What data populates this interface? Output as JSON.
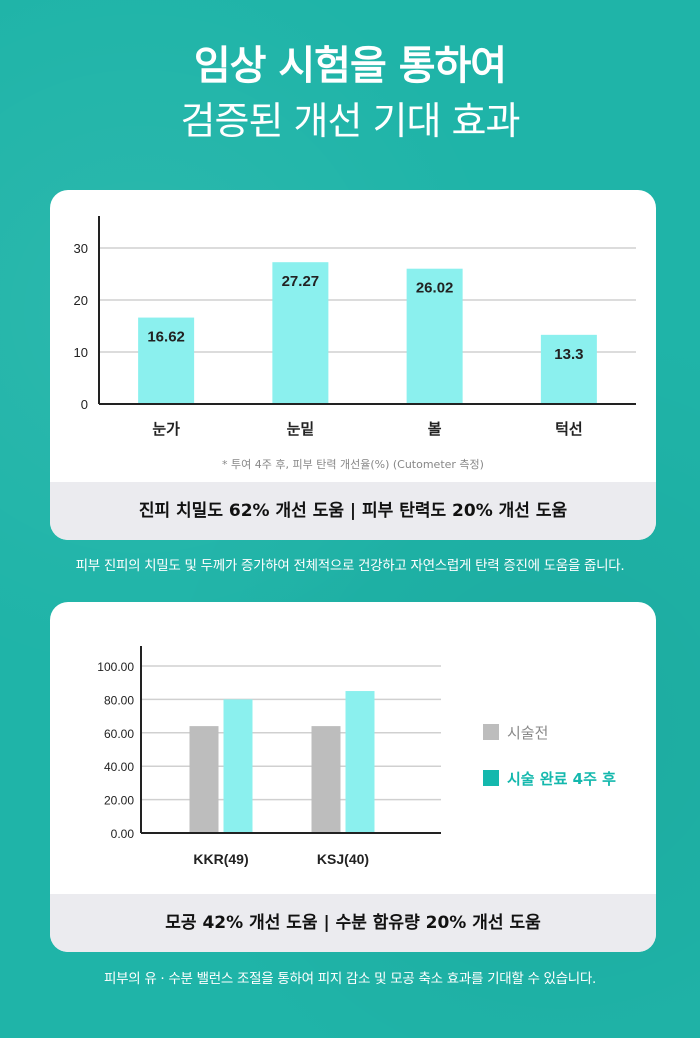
{
  "hero": {
    "title_line1": "임상 시험을 통하여",
    "title_line2": "검증된 개선 기대 효과"
  },
  "card1": {
    "footnote": "* 투여 4주 후, 피부 탄력 개선율(%) (Cutometer 측정)",
    "footer": "진피 치밀도 62% 개선 도움  |  피부 탄력도 20% 개선 도움"
  },
  "caption1": "피부 진피의 치밀도 및 두께가 증가하여 전체적으로 건강하고 자연스럽게 탄력 증진에 도움을 줍니다.",
  "card2": {
    "footer": "모공 42% 개선 도움  |  수분 함유량 20% 개선 도움"
  },
  "caption2": "피부의 유 · 수분 밸런스 조절을 통하여 피지 감소 및 모공 축소 효과를 기대할 수 있습니다.",
  "colors": {
    "bar_cyan": "#8bf0ee",
    "bar_gray": "#bdbdbd",
    "legend_cyan_text": "#14b8ad",
    "background": "#1fb4a8"
  },
  "chart_data": [
    {
      "type": "bar",
      "categories": [
        "눈가",
        "눈밑",
        "볼",
        "턱선"
      ],
      "values": [
        16.62,
        27.27,
        26.02,
        13.3
      ],
      "value_labels": [
        "16.62",
        "27.27",
        "26.02",
        "13.3"
      ],
      "y_ticks": [
        "0",
        "10",
        "20",
        "30"
      ],
      "ylim": [
        0,
        30
      ],
      "grid": true
    },
    {
      "type": "bar",
      "categories": [
        "KKR(49)",
        "KSJ(40)"
      ],
      "series": [
        {
          "name": "시술전",
          "values": [
            64,
            64
          ]
        },
        {
          "name": "시술 완료 4주 후",
          "values": [
            80,
            85
          ]
        }
      ],
      "y_ticks": [
        "0.00",
        "20.00",
        "40.00",
        "60.00",
        "80.00",
        "100.00"
      ],
      "ylim": [
        0,
        100
      ],
      "grid": true,
      "legend_position": "right"
    }
  ]
}
